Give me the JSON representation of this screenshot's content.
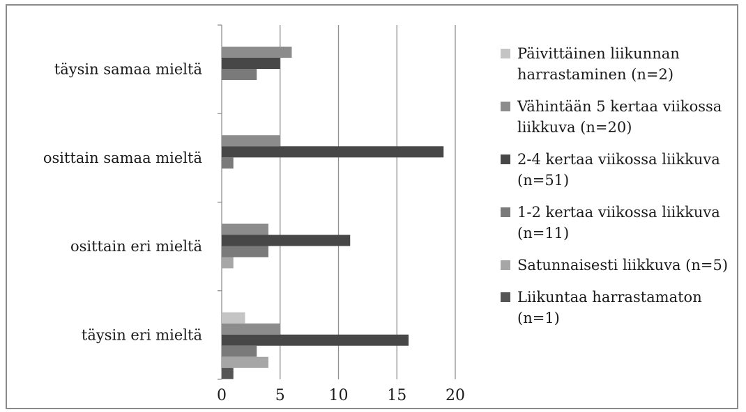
{
  "chart_data": {
    "type": "bar",
    "orientation": "horizontal",
    "categories": [
      "täysin samaa mieltä",
      "osittain samaa mieltä",
      "osittain eri mieltä",
      "täysin eri mieltä"
    ],
    "series": [
      {
        "name": "Päivittäinen liikunnan harrastaminen (n=2)",
        "color": "#c4c4c4",
        "values": [
          0,
          0,
          0,
          2
        ]
      },
      {
        "name": "Vähintään 5 kertaa viikossa liikkuva (n=20)",
        "color": "#8c8c8c",
        "values": [
          6,
          5,
          4,
          5
        ]
      },
      {
        "name": "2-4 kertaa viikossa liikkuva (n=51)",
        "color": "#474747",
        "values": [
          5,
          19,
          11,
          16
        ]
      },
      {
        "name": "1-2 kertaa viikossa liikkuva (n=11)",
        "color": "#7a7a7a",
        "values": [
          3,
          1,
          4,
          3
        ]
      },
      {
        "name": "Satunnaisesti liikkuva (n=5)",
        "color": "#a6a6a6",
        "values": [
          0,
          0,
          1,
          4
        ]
      },
      {
        "name": "Liikuntaa harrastamaton (n=1)",
        "color": "#555555",
        "values": [
          0,
          0,
          0,
          1
        ]
      }
    ],
    "xlim": [
      0,
      20
    ],
    "xticks": [
      "0",
      "5",
      "10",
      "15",
      "20"
    ],
    "grid": true,
    "legend_position": "right"
  }
}
